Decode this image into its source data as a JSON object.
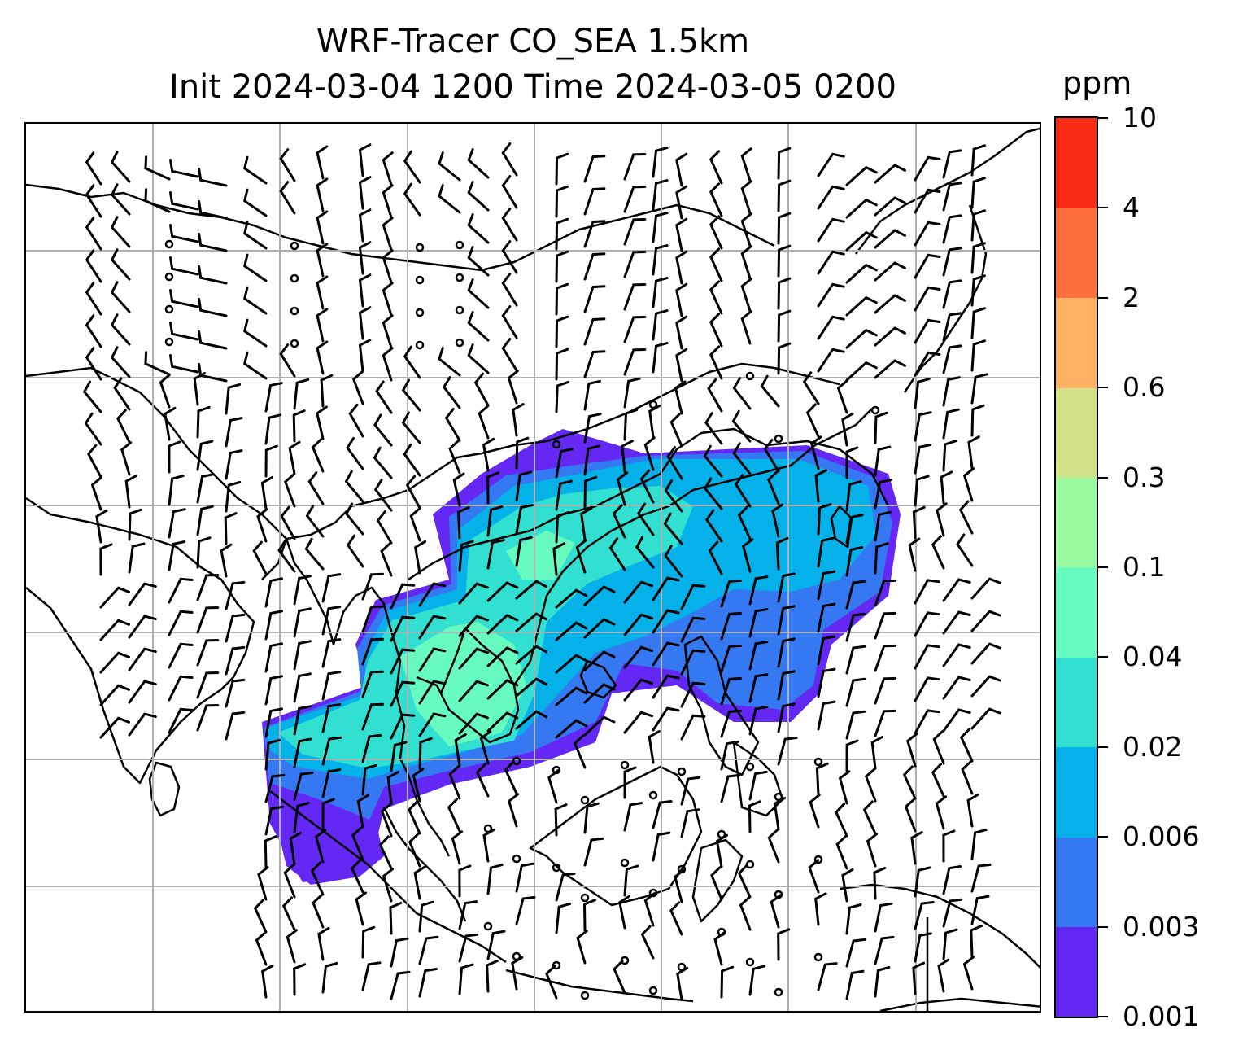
{
  "title": {
    "line1": "WRF-Tracer CO_SEA 1.5km",
    "line2": "Init 2024-03-04 1200 Time 2024-03-05 0200"
  },
  "colorbar": {
    "unit": "ppm",
    "levels": [
      "0.001",
      "0.003",
      "0.006",
      "0.02",
      "0.04",
      "0.1",
      "0.3",
      "0.6",
      "2",
      "4",
      "10"
    ],
    "colors": [
      "#6428f5",
      "#3478f2",
      "#04b1e9",
      "#31e0d1",
      "#68fbbf",
      "#99f99e",
      "#d1e187",
      "#fdb162",
      "#fe6f3b",
      "#fb2c16"
    ]
  },
  "map": {
    "gridlines": true,
    "wind_barbs": true,
    "plume_colors": [
      "#6428f5",
      "#3478f2",
      "#04b1e9",
      "#31e0d1",
      "#68fbbf"
    ]
  }
}
